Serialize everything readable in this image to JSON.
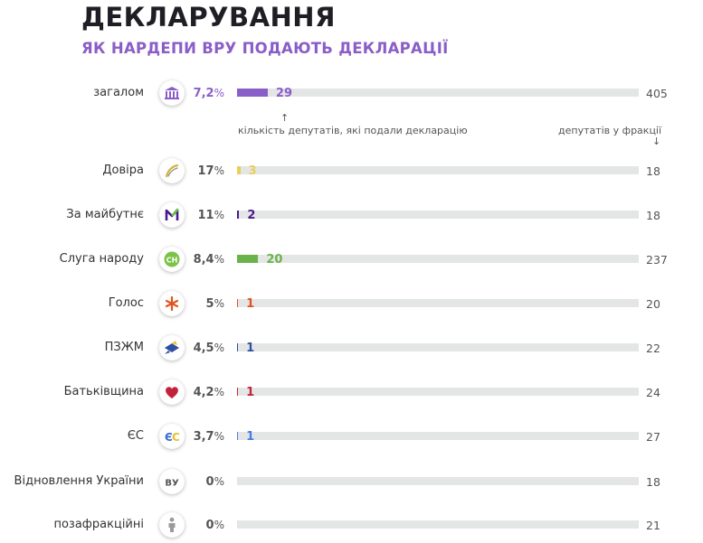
{
  "header": {
    "title": "ДЕКЛАРУВАННЯ",
    "subtitle": "ЯК НАРДЕПИ ВРУ ПОДАЮТЬ ДЕКЛАРАЦІЇ"
  },
  "notes": {
    "filed_label": "кількість депутатів, які подали декларацію",
    "total_label": "депутатів у фракції",
    "up_arrow": "↑",
    "down_arrow": "↓"
  },
  "chart_data": {
    "type": "bar",
    "title": "ДЕКЛАРУВАННЯ",
    "subtitle": "ЯК НАРДЕПИ ВРУ ПОДАЮТЬ ДЕКЛАРАЦІЇ",
    "percent_symbol": "%",
    "categories": [
      "загалом",
      "Довіра",
      "За майбутнє",
      "Слуга народу",
      "Голос",
      "ПЗЖМ",
      "Батьківщина",
      "ЄС",
      "Відновлення України",
      "позафракційні"
    ],
    "rows": [
      {
        "label": "загалом",
        "icon": "parliament-icon",
        "percent": "7,2",
        "filed": 29,
        "total": 405,
        "color": "#8a5ec7",
        "pct_color": "#8a5ec7"
      },
      {
        "label": "Довіра",
        "icon": "dovira-logo-icon",
        "percent": "17",
        "filed": 3,
        "total": 18,
        "color": "#e8cf5a",
        "pct_color": "#555555"
      },
      {
        "label": "За майбутнє",
        "icon": "za-maibutnie-logo-icon",
        "percent": "11",
        "filed": 2,
        "total": 18,
        "color": "#4a1a8c",
        "pct_color": "#555555"
      },
      {
        "label": "Слуга народу",
        "icon": "sluha-narodu-logo-icon",
        "percent": "8,4",
        "filed": 20,
        "total": 237,
        "color": "#6cb24a",
        "pct_color": "#555555"
      },
      {
        "label": "Голос",
        "icon": "holos-logo-icon",
        "percent": "5",
        "filed": 1,
        "total": 20,
        "color": "#e0541e",
        "pct_color": "#555555"
      },
      {
        "label": "ПЗЖМ",
        "icon": "pzzhm-logo-icon",
        "percent": "4,5",
        "filed": 1,
        "total": 22,
        "color": "#2f4fa0",
        "pct_color": "#555555"
      },
      {
        "label": "Батьківщина",
        "icon": "batkivshchyna-logo-icon",
        "percent": "4,2",
        "filed": 1,
        "total": 24,
        "color": "#c4223a",
        "pct_color": "#555555"
      },
      {
        "label": "ЄС",
        "icon": "yes-logo-icon",
        "percent": "3,7",
        "filed": 1,
        "total": 27,
        "color": "#4a7de0",
        "pct_color": "#555555"
      },
      {
        "label": "Відновлення України",
        "icon": "vidnovlennia-logo-icon",
        "icon_text": "ВУ",
        "percent": "0",
        "filed": 0,
        "total": 18,
        "color": "#6a6a6a",
        "pct_color": "#555555"
      },
      {
        "label": "позафракційні",
        "icon": "person-icon",
        "percent": "0",
        "filed": 0,
        "total": 21,
        "color": "#6a6a6a",
        "pct_color": "#555555"
      }
    ],
    "xlabel": "",
    "ylabel": ""
  }
}
